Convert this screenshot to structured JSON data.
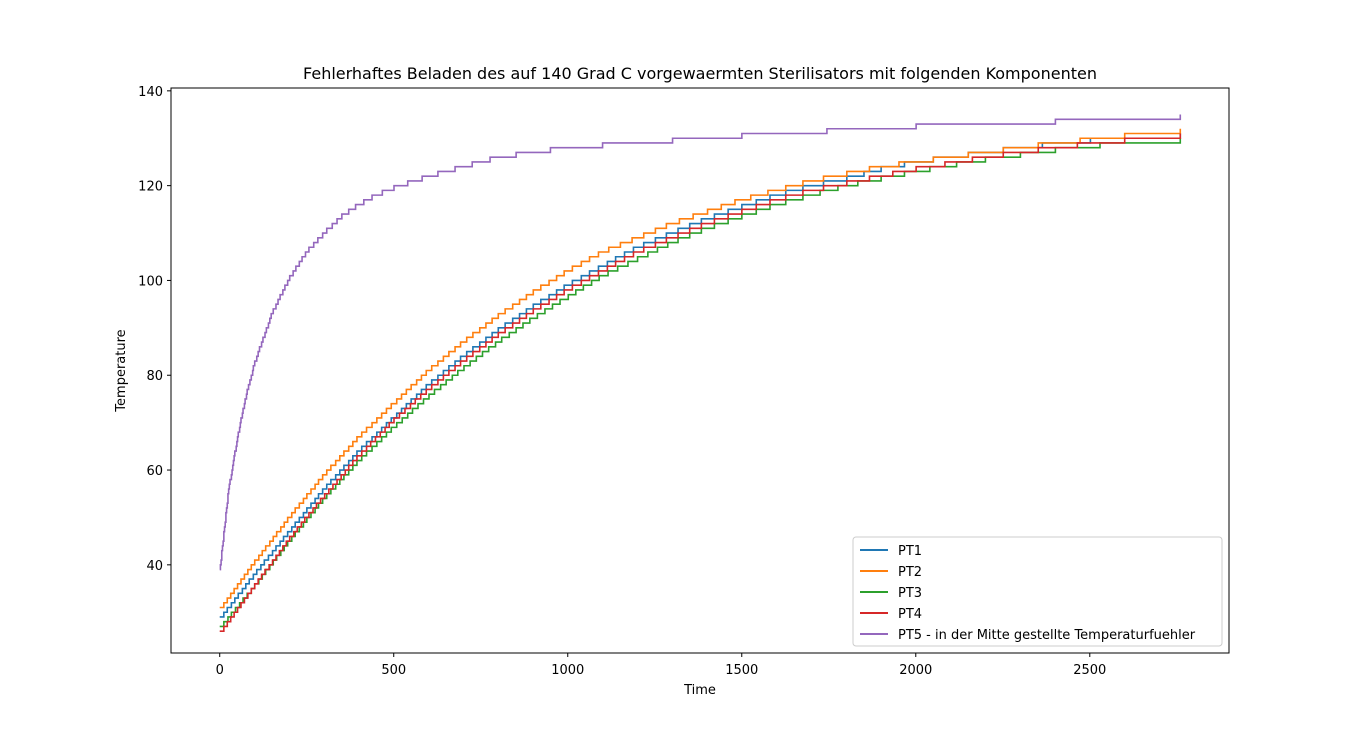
{
  "chart_data": {
    "type": "line",
    "title": "Fehlerhaftes Beladen des auf 140 Grad C vorgewaermten Sterilisators mit folgenden Komponenten",
    "xlabel": "Time",
    "ylabel": "Temperature",
    "xlim": [
      -140,
      2900
    ],
    "ylim": [
      21.4,
      140.6
    ],
    "xticks": [
      0,
      500,
      1000,
      1500,
      2000,
      2500
    ],
    "yticks": [
      40,
      60,
      80,
      100,
      120,
      140
    ],
    "grid": false,
    "legend_position": "lower-right",
    "step_style": "integer-degree steps",
    "series": [
      {
        "name": "PT1",
        "color": "#1f77b4",
        "x": [
          0,
          100,
          200,
          300,
          400,
          500,
          600,
          700,
          800,
          900,
          1000,
          1100,
          1200,
          1300,
          1400,
          1500,
          1600,
          1700,
          1800,
          1900,
          2000,
          2100,
          2200,
          2300,
          2400,
          2500,
          2600,
          2760
        ],
        "y": [
          29,
          38.5,
          47.5,
          56.5,
          64.5,
          71.5,
          78.5,
          84.5,
          90,
          95,
          99.5,
          103.5,
          107.5,
          110.5,
          113.5,
          116,
          118.5,
          120.5,
          122,
          124,
          125.5,
          126.5,
          127.5,
          128.5,
          129.3,
          130,
          130.5,
          131
        ]
      },
      {
        "name": "PT2",
        "color": "#ff7f0e",
        "x": [
          0,
          100,
          200,
          300,
          400,
          500,
          600,
          700,
          800,
          900,
          1000,
          1100,
          1200,
          1300,
          1400,
          1500,
          1600,
          1700,
          1800,
          1900,
          2000,
          2100,
          2200,
          2300,
          2400,
          2500,
          2600,
          2760
        ],
        "y": [
          31,
          41,
          50.5,
          59.5,
          67.5,
          74.5,
          81.5,
          87.5,
          93,
          98,
          102.5,
          106.5,
          109.5,
          112.5,
          115,
          117.5,
          119.5,
          121.5,
          123,
          124.5,
          125.5,
          126.5,
          127.5,
          128.5,
          129.5,
          130.2,
          131,
          132
        ]
      },
      {
        "name": "PT3",
        "color": "#2ca02c",
        "x": [
          0,
          100,
          200,
          300,
          400,
          500,
          600,
          700,
          800,
          900,
          1000,
          1100,
          1200,
          1300,
          1400,
          1500,
          1600,
          1700,
          1800,
          1900,
          2000,
          2100,
          2200,
          2300,
          2400,
          2500,
          2600,
          2760
        ],
        "y": [
          27,
          36,
          45.5,
          54.5,
          62.5,
          69.5,
          76,
          82,
          87.5,
          92.5,
          97,
          101.5,
          105,
          108.5,
          111.5,
          114,
          116.5,
          118.5,
          120.5,
          122,
          123.5,
          124.8,
          126,
          127,
          128,
          128.8,
          129.5,
          130
        ]
      },
      {
        "name": "PT4",
        "color": "#d62728",
        "x": [
          0,
          100,
          200,
          300,
          400,
          500,
          600,
          700,
          800,
          900,
          1000,
          1100,
          1200,
          1300,
          1400,
          1500,
          1600,
          1700,
          1800,
          1900,
          2000,
          2100,
          2200,
          2300,
          2400,
          2500,
          2600,
          2760
        ],
        "y": [
          26,
          36,
          46,
          55,
          63.5,
          71,
          77.5,
          83.5,
          89,
          94,
          98.5,
          102.5,
          106.5,
          109.5,
          112.5,
          115,
          117.5,
          119.5,
          121,
          122.5,
          124,
          125.2,
          126.5,
          127.5,
          128.5,
          129.3,
          130,
          131
        ]
      },
      {
        "name": "PT5 - in der Mitte gestellte Temperaturfuehler",
        "color": "#9467bd",
        "x": [
          0,
          25,
          50,
          75,
          100,
          150,
          200,
          250,
          300,
          350,
          400,
          450,
          500,
          600,
          700,
          800,
          900,
          1000,
          1200,
          1400,
          1600,
          1800,
          2000,
          2200,
          2400,
          2600,
          2760
        ],
        "y": [
          39,
          56,
          67,
          76,
          83,
          93.5,
          101,
          106.5,
          110.5,
          114,
          116.5,
          118.5,
          120,
          122.5,
          124.5,
          126.5,
          127.5,
          128.5,
          129.5,
          130.5,
          131.5,
          132.2,
          133,
          133.5,
          134,
          134.5,
          135
        ]
      }
    ]
  }
}
